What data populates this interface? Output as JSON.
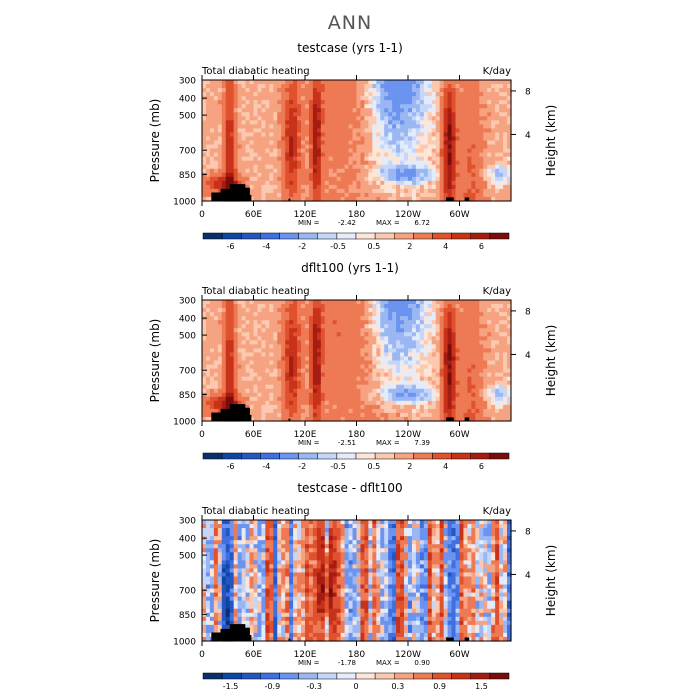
{
  "figure": {
    "title": "ANN"
  },
  "chart_data": [
    {
      "type": "heatmap",
      "title": "testcase (yrs 1-1)",
      "left_label": "Total diabatic heating",
      "right_label": "K/day",
      "ylabel": "Pressure (mb)",
      "y2label": "Height (km)",
      "y_ticks": [
        "300",
        "400",
        "500",
        "700",
        "850",
        "1000"
      ],
      "y2_ticks": [
        "8",
        "4"
      ],
      "x_ticks": [
        "0",
        "60E",
        "120E",
        "180",
        "120W",
        "60W"
      ],
      "min_label": "MIN =",
      "min_value": "-2.42",
      "max_label": "MAX =",
      "max_value": "6.72",
      "colorbar_ticks": [
        "-6",
        "-4",
        "-2",
        "-0.5",
        "0.5",
        "2",
        "4",
        "6"
      ],
      "grid": false
    },
    {
      "type": "heatmap",
      "title": "dflt100 (yrs 1-1)",
      "left_label": "Total diabatic heating",
      "right_label": "K/day",
      "ylabel": "Pressure (mb)",
      "y2label": "Height (km)",
      "y_ticks": [
        "300",
        "400",
        "500",
        "700",
        "850",
        "1000"
      ],
      "y2_ticks": [
        "8",
        "4"
      ],
      "x_ticks": [
        "0",
        "60E",
        "120E",
        "180",
        "120W",
        "60W"
      ],
      "min_label": "MIN =",
      "min_value": "-2.51",
      "max_label": "MAX =",
      "max_value": "7.39",
      "colorbar_ticks": [
        "-6",
        "-4",
        "-2",
        "-0.5",
        "0.5",
        "2",
        "4",
        "6"
      ],
      "grid": false
    },
    {
      "type": "heatmap",
      "title": "testcase - dflt100",
      "left_label": "Total diabatic heating",
      "right_label": "K/day",
      "ylabel": "Pressure (mb)",
      "y2label": "Height (km)",
      "y_ticks": [
        "300",
        "400",
        "500",
        "700",
        "850",
        "1000"
      ],
      "y2_ticks": [
        "8",
        "4"
      ],
      "x_ticks": [
        "0",
        "60E",
        "120E",
        "180",
        "120W",
        "60W"
      ],
      "min_label": "MIN =",
      "min_value": "-1.78",
      "max_label": "MAX =",
      "max_value": "0.90",
      "colorbar_ticks": [
        "-1.5",
        "-0.9",
        "-0.3",
        "0",
        "0.3",
        "0.9",
        "1.5"
      ],
      "grid": false
    }
  ],
  "colors": {
    "diverging": [
      "#08306b",
      "#0d47a1",
      "#2455c3",
      "#3f6fe0",
      "#6b93f0",
      "#9ab7f4",
      "#c5d6f8",
      "#e3ecfb",
      "#fde6d8",
      "#fbc9b0",
      "#f6a382",
      "#ee7a55",
      "#e0512e",
      "#c9321a",
      "#a51c12",
      "#7a0c0c"
    ],
    "topography": "#000000"
  }
}
